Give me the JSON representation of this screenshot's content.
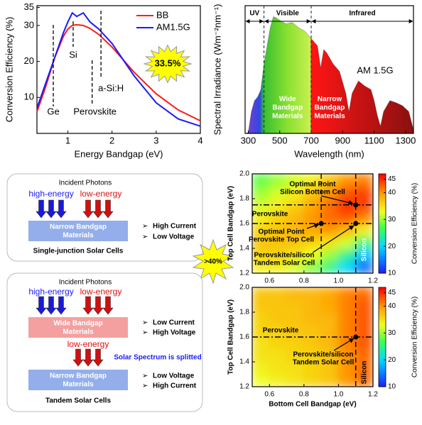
{
  "chart_data": [
    {
      "type": "line",
      "xlabel": "Energy Bandgap (eV)",
      "ylabel": "Conversion Efficiency (%)",
      "x": [
        0.3,
        0.5,
        0.7,
        0.9,
        1.0,
        1.1,
        1.2,
        1.35,
        1.5,
        1.7,
        2.0,
        2.5,
        3.0,
        3.5,
        4.0
      ],
      "series": [
        {
          "name": "BB",
          "color": "#ff1a1a",
          "values": [
            6,
            13,
            21,
            27,
            29,
            30,
            30.2,
            30,
            29.2,
            27.5,
            24,
            17,
            11,
            6.5,
            3.5
          ]
        },
        {
          "name": "AM1.5G",
          "color": "#1a1aff",
          "values": [
            7,
            14,
            21,
            28,
            31,
            33.5,
            32.5,
            33.5,
            31,
            29,
            25,
            16,
            8.5,
            4,
            2
          ]
        }
      ],
      "xlim": [
        0.3,
        4
      ],
      "xticks": [
        1,
        2,
        3,
        4
      ],
      "ylim": [
        0,
        35.5
      ],
      "yticks": [
        10,
        20,
        30,
        35
      ],
      "vlines": [
        0.67,
        1.12,
        1.55,
        1.75
      ],
      "vline_labels": [
        "Ge",
        "Si",
        "Perovskite",
        "a-Si:H"
      ],
      "annotation": "33.5%",
      "legend": "upper right"
    },
    {
      "type": "area",
      "xlabel": "Wavelength (nm)",
      "ylabel": "Spectral Irradiance (Wm⁻²nm⁻¹)",
      "x": [
        280,
        300,
        320,
        340,
        360,
        380,
        400,
        420,
        440,
        460,
        480,
        500,
        540,
        580,
        620,
        660,
        700,
        720,
        740,
        760,
        780,
        800,
        840,
        880,
        900,
        920,
        940,
        960,
        1000,
        1040,
        1080,
        1100,
        1120,
        1140,
        1160,
        1200,
        1240,
        1280,
        1320,
        1350
      ],
      "values": [
        0,
        0.01,
        0.3,
        0.45,
        0.5,
        0.6,
        0.95,
        1.2,
        1.45,
        1.6,
        1.58,
        1.55,
        1.5,
        1.52,
        1.45,
        1.4,
        1.3,
        1.25,
        1.2,
        0.9,
        1.15,
        1.1,
        0.95,
        0.85,
        0.7,
        0.55,
        0.3,
        0.55,
        0.72,
        0.65,
        0.6,
        0.45,
        0.25,
        0.1,
        0.3,
        0.45,
        0.42,
        0.38,
        0.3,
        0.05
      ],
      "xlim": [
        280,
        1350
      ],
      "xticks": [
        300,
        500,
        700,
        900,
        1100,
        1300
      ],
      "ylim": [
        0,
        1.75
      ],
      "bounds": [
        400,
        700
      ],
      "regions": [
        "UV",
        "Visible",
        "Infrared"
      ],
      "annotations": [
        [
          "AM 1.5G"
        ],
        [
          "Wide",
          "Bandgap",
          "Materials"
        ],
        [
          "Narrow",
          "Bandgap",
          "Materials"
        ]
      ]
    },
    {
      "type": "heatmap",
      "ylabel": "Top Cell Bandgap (eV)",
      "colorbar_label": "Conversion Efficiency (%)",
      "colormap": "jet",
      "x": [
        0.55,
        0.65,
        0.75,
        0.85,
        0.95,
        1.05,
        1.15
      ],
      "y": [
        1.25,
        1.35,
        1.45,
        1.55,
        1.65,
        1.75,
        1.85,
        1.95
      ],
      "z": [
        [
          34,
          34,
          32,
          29,
          25,
          20,
          14
        ],
        [
          36,
          36,
          35,
          33,
          30,
          25,
          19
        ],
        [
          37,
          37,
          37,
          36,
          35,
          32,
          26
        ],
        [
          36,
          37,
          38,
          39,
          40,
          38,
          34
        ],
        [
          34,
          36,
          38,
          40,
          42,
          43,
          41
        ],
        [
          32,
          34,
          36,
          39,
          42,
          45,
          44
        ],
        [
          30,
          32,
          34,
          37,
          40,
          43,
          44
        ],
        [
          28,
          30,
          32,
          34,
          37,
          40,
          41
        ]
      ],
      "xlim": [
        0.5,
        1.2
      ],
      "xticks": [
        0.6,
        0.8,
        {
          "value": 1,
          "label": "1.0"
        },
        1.2
      ],
      "ylim": [
        1.2,
        2
      ],
      "yticks": [
        1.2,
        1.4,
        1.6,
        1.8,
        {
          "value": 2,
          "label": "2.0"
        }
      ],
      "clim": [
        10,
        47
      ],
      "cticks": [
        10,
        20,
        30,
        40,
        45
      ],
      "vlines": [
        0.9,
        1.1
      ],
      "hlines": [
        1.6,
        1.75
      ],
      "points": {
        "x": [
          1.1,
          0.9,
          1.1
        ],
        "y": [
          1.75,
          1.6,
          1.6
        ]
      },
      "annotations": [
        [
          "Optimal Point",
          "Silicon Bottom Cell"
        ],
        [
          "Perovskite"
        ],
        [
          "Optimal Point",
          "Perovskite Top Cell"
        ],
        [
          "Perovskite/silicon",
          "Tandem Solar Cell"
        ],
        [
          "Silicon"
        ]
      ]
    },
    {
      "type": "heatmap",
      "xlabel": "Bottom Cell Bandgap (eV)",
      "ylabel": "Top Cell Bandgap (eV)",
      "colorbar_label": "Conversion Efficiency (%)",
      "colormap": "jet",
      "x": [
        0.55,
        0.65,
        0.75,
        0.85,
        0.95,
        1.05,
        1.15
      ],
      "y": [
        1.25,
        1.35,
        1.45,
        1.55,
        1.65,
        1.75,
        1.85,
        1.95
      ],
      "z": [
        [
          33,
          34,
          35,
          36,
          37,
          40,
          42
        ],
        [
          34,
          35,
          35,
          36,
          37,
          40,
          42
        ],
        [
          35,
          35,
          36,
          36,
          37,
          40,
          42
        ],
        [
          35,
          36,
          36,
          37,
          38,
          41,
          43
        ],
        [
          36,
          36,
          37,
          37,
          38,
          41,
          43
        ],
        [
          36,
          37,
          37,
          38,
          38,
          41,
          43
        ],
        [
          37,
          37,
          37,
          38,
          39,
          41,
          43
        ],
        [
          37,
          37,
          38,
          38,
          39,
          41,
          42
        ]
      ],
      "xlim": [
        0.5,
        1.2
      ],
      "xticks": [
        0.6,
        0.8,
        {
          "value": 1,
          "label": "1.0"
        },
        1.2
      ],
      "ylim": [
        1.2,
        2
      ],
      "yticks": [
        1.2,
        1.4,
        1.6,
        1.8,
        {
          "value": 2,
          "label": "2.0"
        }
      ],
      "clim": [
        10,
        47
      ],
      "cticks": [
        10,
        20,
        30,
        40,
        45
      ],
      "vlines": [
        1.1
      ],
      "hlines": [
        1.6
      ],
      "points": {
        "x": [
          1.1
        ],
        "y": [
          1.6
        ]
      },
      "annotations": [
        [
          "Perovskite"
        ],
        [
          "Perovskite/silicon",
          "Tandem Solar Cell"
        ],
        [
          "Silicon"
        ]
      ]
    }
  ],
  "diagram": {
    "single": {
      "title": "Incident Photons",
      "high": "high-energy",
      "low": "low-energy",
      "layer": [
        "Narrow Bandgap",
        "Materials"
      ],
      "notes": [
        "High Current",
        "Low Voltage"
      ],
      "caption": "Single-junction Solar Cells"
    },
    "badge": ">40%",
    "tandem": {
      "title": "Incident Photons",
      "high": "high-energy",
      "low": "low-energy",
      "top_layer": [
        "Wide Bandgap",
        "Materials"
      ],
      "top_notes": [
        "Low Current",
        "High Voltage"
      ],
      "low2": "low-energy",
      "split": "Solar Spectrum is splitted",
      "bottom_layer": [
        "Narrow Bandgap",
        "Materials"
      ],
      "bottom_notes": [
        "Low Voltage",
        "High Current"
      ],
      "caption": "Tandem Solar Cells"
    }
  }
}
